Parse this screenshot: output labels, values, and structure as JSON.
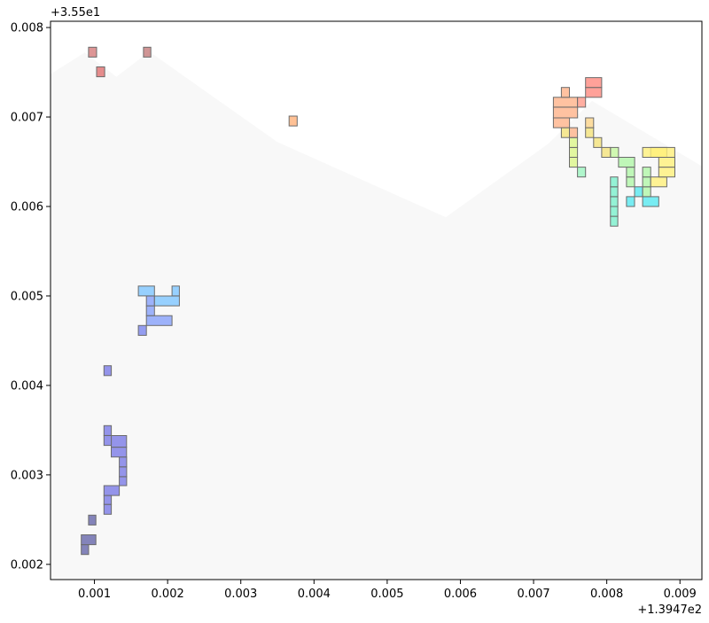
{
  "chart_data": {
    "type": "heatmap",
    "title": "",
    "xlabel": "",
    "ylabel": "",
    "x_offset_label": "+1.3947e2",
    "y_offset_label": "+3.55e1",
    "xlim": [
      0.0004,
      0.0093
    ],
    "ylim": [
      0.00183,
      0.00807
    ],
    "x_ticks": [
      {
        "value": 0.001,
        "label": "0.001"
      },
      {
        "value": 0.002,
        "label": "0.002"
      },
      {
        "value": 0.003,
        "label": "0.003"
      },
      {
        "value": 0.004,
        "label": "0.004"
      },
      {
        "value": 0.005,
        "label": "0.005"
      },
      {
        "value": 0.006,
        "label": "0.006"
      },
      {
        "value": 0.007,
        "label": "0.007"
      },
      {
        "value": 0.008,
        "label": "0.008"
      },
      {
        "value": 0.009,
        "label": "0.009"
      }
    ],
    "y_ticks": [
      {
        "value": 0.002,
        "label": "0.002"
      },
      {
        "value": 0.003,
        "label": "0.003"
      },
      {
        "value": 0.004,
        "label": "0.004"
      },
      {
        "value": 0.005,
        "label": "0.005"
      },
      {
        "value": 0.006,
        "label": "0.006"
      },
      {
        "value": 0.007,
        "label": "0.007"
      },
      {
        "value": 0.008,
        "label": "0.008"
      }
    ],
    "background_region": {
      "color": "#f8f8f8",
      "top_edge": [
        [
          0.0004,
          0.00748
        ],
        [
          0.00087,
          0.00772
        ],
        [
          0.0013,
          0.00745
        ],
        [
          0.00175,
          0.00773
        ],
        [
          0.0035,
          0.00672
        ],
        [
          0.0058,
          0.00588
        ],
        [
          0.0072,
          0.0067
        ],
        [
          0.0078,
          0.00718
        ],
        [
          0.0093,
          0.00645
        ]
      ]
    },
    "cells": [
      {
        "x0": 0.00082,
        "x1": 0.00092,
        "y0": 0.00211,
        "y1": 0.00222,
        "color": "#6666aa"
      },
      {
        "x0": 0.00082,
        "x1": 0.00102,
        "y0": 0.00222,
        "y1": 0.00233,
        "color": "#6666aa"
      },
      {
        "x0": 0.00092,
        "x1": 0.00102,
        "y0": 0.00244,
        "y1": 0.00255,
        "color": "#6666aa"
      },
      {
        "x0": 0.00113,
        "x1": 0.00123,
        "y0": 0.00256,
        "y1": 0.00267,
        "color": "#7b7be6"
      },
      {
        "x0": 0.00113,
        "x1": 0.00123,
        "y0": 0.00267,
        "y1": 0.00277,
        "color": "#7b7be6"
      },
      {
        "x0": 0.00113,
        "x1": 0.00134,
        "y0": 0.00277,
        "y1": 0.00288,
        "color": "#7b7be6"
      },
      {
        "x0": 0.00134,
        "x1": 0.00144,
        "y0": 0.00288,
        "y1": 0.00298,
        "color": "#7b7be6"
      },
      {
        "x0": 0.00134,
        "x1": 0.00144,
        "y0": 0.00298,
        "y1": 0.00309,
        "color": "#7b7be6"
      },
      {
        "x0": 0.00134,
        "x1": 0.00144,
        "y0": 0.00309,
        "y1": 0.0032,
        "color": "#7b7be6"
      },
      {
        "x0": 0.00123,
        "x1": 0.00144,
        "y0": 0.0032,
        "y1": 0.00331,
        "color": "#7b7be6"
      },
      {
        "x0": 0.00123,
        "x1": 0.00144,
        "y0": 0.00331,
        "y1": 0.00344,
        "color": "#7b7be6"
      },
      {
        "x0": 0.00113,
        "x1": 0.00123,
        "y0": 0.00333,
        "y1": 0.00344,
        "color": "#7b7be6"
      },
      {
        "x0": 0.00113,
        "x1": 0.00123,
        "y0": 0.00344,
        "y1": 0.00355,
        "color": "#7b7be6"
      },
      {
        "x0": 0.00113,
        "x1": 0.00123,
        "y0": 0.00411,
        "y1": 0.00422,
        "color": "#7b7be6"
      },
      {
        "x0": 0.0016,
        "x1": 0.00171,
        "y0": 0.00456,
        "y1": 0.00467,
        "color": "#7a86ee"
      },
      {
        "x0": 0.00171,
        "x1": 0.00206,
        "y0": 0.00467,
        "y1": 0.00478,
        "color": "#86a0fa"
      },
      {
        "x0": 0.00171,
        "x1": 0.00182,
        "y0": 0.00478,
        "y1": 0.00489,
        "color": "#86a0fa"
      },
      {
        "x0": 0.00171,
        "x1": 0.00182,
        "y0": 0.00489,
        "y1": 0.005,
        "color": "#86a0fa"
      },
      {
        "x0": 0.00182,
        "x1": 0.00216,
        "y0": 0.00489,
        "y1": 0.005,
        "color": "#7ec6ff"
      },
      {
        "x0": 0.0016,
        "x1": 0.00182,
        "y0": 0.005,
        "y1": 0.00511,
        "color": "#7ec6ff"
      },
      {
        "x0": 0.00206,
        "x1": 0.00216,
        "y0": 0.005,
        "y1": 0.00511,
        "color": "#7ec6ff"
      },
      {
        "x0": 0.00805,
        "x1": 0.00815,
        "y0": 0.00578,
        "y1": 0.00589,
        "color": "#7af0cc"
      },
      {
        "x0": 0.00805,
        "x1": 0.00815,
        "y0": 0.00589,
        "y1": 0.006,
        "color": "#7af0cc"
      },
      {
        "x0": 0.00805,
        "x1": 0.00815,
        "y0": 0.006,
        "y1": 0.00611,
        "color": "#7af0cc"
      },
      {
        "x0": 0.00805,
        "x1": 0.00815,
        "y0": 0.00611,
        "y1": 0.00622,
        "color": "#7af0cc"
      },
      {
        "x0": 0.00805,
        "x1": 0.00815,
        "y0": 0.00622,
        "y1": 0.00633,
        "color": "#7af0cc"
      },
      {
        "x0": 0.00827,
        "x1": 0.00838,
        "y0": 0.006,
        "y1": 0.00611,
        "color": "#58e8f0"
      },
      {
        "x0": 0.00838,
        "x1": 0.00849,
        "y0": 0.00611,
        "y1": 0.00622,
        "color": "#58e8f0"
      },
      {
        "x0": 0.00849,
        "x1": 0.00871,
        "y0": 0.006,
        "y1": 0.00611,
        "color": "#58e8f0"
      },
      {
        "x0": 0.0076,
        "x1": 0.00771,
        "y0": 0.00633,
        "y1": 0.00644,
        "color": "#9ef5c0"
      },
      {
        "x0": 0.00827,
        "x1": 0.00838,
        "y0": 0.00622,
        "y1": 0.00633,
        "color": "#b0f6a8"
      },
      {
        "x0": 0.00827,
        "x1": 0.00838,
        "y0": 0.00633,
        "y1": 0.00644,
        "color": "#b0f6a8"
      },
      {
        "x0": 0.00816,
        "x1": 0.00838,
        "y0": 0.00644,
        "y1": 0.00655,
        "color": "#b0f6a8"
      },
      {
        "x0": 0.00849,
        "x1": 0.0086,
        "y0": 0.00611,
        "y1": 0.00622,
        "color": "#b0f6a8"
      },
      {
        "x0": 0.00849,
        "x1": 0.0086,
        "y0": 0.00622,
        "y1": 0.00633,
        "color": "#b0f6a8"
      },
      {
        "x0": 0.00849,
        "x1": 0.0086,
        "y0": 0.00633,
        "y1": 0.00644,
        "color": "#b0f6a8"
      },
      {
        "x0": 0.00805,
        "x1": 0.00816,
        "y0": 0.00655,
        "y1": 0.00666,
        "color": "#c6f8a0"
      },
      {
        "x0": 0.00749,
        "x1": 0.0076,
        "y0": 0.00644,
        "y1": 0.00655,
        "color": "#dcf68a"
      },
      {
        "x0": 0.00749,
        "x1": 0.0076,
        "y0": 0.00655,
        "y1": 0.00666,
        "color": "#dcf68a"
      },
      {
        "x0": 0.00749,
        "x1": 0.0076,
        "y0": 0.00666,
        "y1": 0.00677,
        "color": "#dcf68a"
      },
      {
        "x0": 0.00738,
        "x1": 0.00749,
        "y0": 0.00677,
        "y1": 0.00688,
        "color": "#f4e27a"
      },
      {
        "x0": 0.00771,
        "x1": 0.00782,
        "y0": 0.00677,
        "y1": 0.00688,
        "color": "#f4e27a"
      },
      {
        "x0": 0.00782,
        "x1": 0.00793,
        "y0": 0.00666,
        "y1": 0.00677,
        "color": "#f4e27a"
      },
      {
        "x0": 0.00793,
        "x1": 0.00805,
        "y0": 0.00655,
        "y1": 0.00666,
        "color": "#f4e27a"
      },
      {
        "x0": 0.00771,
        "x1": 0.00782,
        "y0": 0.00688,
        "y1": 0.00699,
        "color": "#fcd48a"
      },
      {
        "x0": 0.0086,
        "x1": 0.00882,
        "y0": 0.00622,
        "y1": 0.00633,
        "color": "#fff07a"
      },
      {
        "x0": 0.00871,
        "x1": 0.00893,
        "y0": 0.00633,
        "y1": 0.00644,
        "color": "#fff07a"
      },
      {
        "x0": 0.00871,
        "x1": 0.00893,
        "y0": 0.00644,
        "y1": 0.00655,
        "color": "#fff07a"
      },
      {
        "x0": 0.0086,
        "x1": 0.00882,
        "y0": 0.00655,
        "y1": 0.00666,
        "color": "#fff07a"
      },
      {
        "x0": 0.00849,
        "x1": 0.00893,
        "y0": 0.00655,
        "y1": 0.00666,
        "color": "#fff07a"
      },
      {
        "x0": 0.00727,
        "x1": 0.00749,
        "y0": 0.00688,
        "y1": 0.00699,
        "color": "#ffb38a"
      },
      {
        "x0": 0.00727,
        "x1": 0.0076,
        "y0": 0.00699,
        "y1": 0.00711,
        "color": "#ffb38a"
      },
      {
        "x0": 0.00727,
        "x1": 0.0076,
        "y0": 0.00711,
        "y1": 0.00722,
        "color": "#ffb38a"
      },
      {
        "x0": 0.00738,
        "x1": 0.00749,
        "y0": 0.00722,
        "y1": 0.00733,
        "color": "#ffb38a"
      },
      {
        "x0": 0.00749,
        "x1": 0.0076,
        "y0": 0.00677,
        "y1": 0.00688,
        "color": "#ffb38a"
      },
      {
        "x0": 0.0076,
        "x1": 0.00771,
        "y0": 0.00711,
        "y1": 0.00722,
        "color": "#ff9a8a"
      },
      {
        "x0": 0.00771,
        "x1": 0.00793,
        "y0": 0.00722,
        "y1": 0.00733,
        "color": "#ff8a80"
      },
      {
        "x0": 0.00771,
        "x1": 0.00793,
        "y0": 0.00733,
        "y1": 0.00744,
        "color": "#ff8a80"
      },
      {
        "x0": 0.00366,
        "x1": 0.00377,
        "y0": 0.0069,
        "y1": 0.00701,
        "color": "#ffb27a"
      },
      {
        "x0": 0.00092,
        "x1": 0.00103,
        "y0": 0.00767,
        "y1": 0.00778,
        "color": "#d47a7a"
      },
      {
        "x0": 0.00103,
        "x1": 0.00114,
        "y0": 0.00745,
        "y1": 0.00756,
        "color": "#e07070"
      },
      {
        "x0": 0.00167,
        "x1": 0.00177,
        "y0": 0.00767,
        "y1": 0.00778,
        "color": "#c47a7a"
      }
    ]
  }
}
